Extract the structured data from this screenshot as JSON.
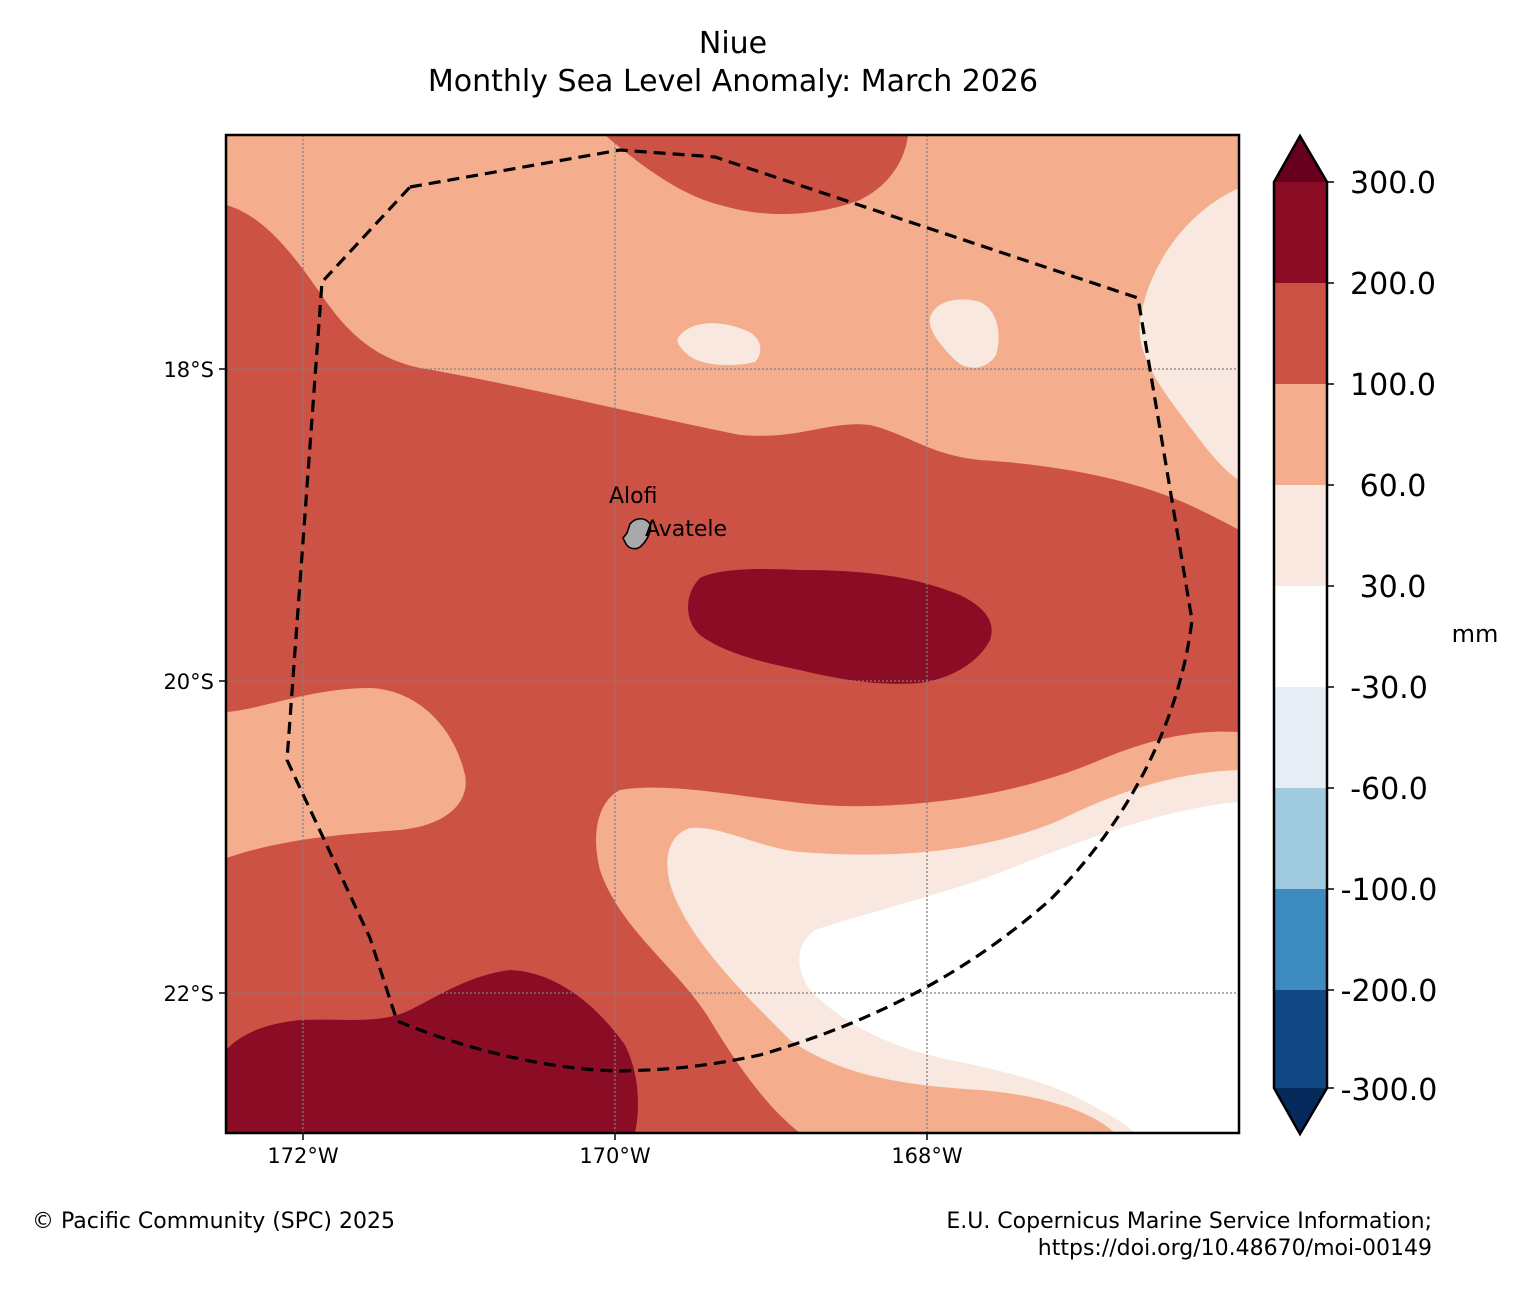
{
  "title": {
    "line1": "Niue",
    "line2": "Monthly Sea Level Anomaly: March 2026"
  },
  "map": {
    "lat_labels": [
      "18°S",
      "20°S",
      "22°S"
    ],
    "lon_labels": [
      "172°W",
      "170°W",
      "168°W"
    ],
    "place_labels": {
      "alofi": "Alofi",
      "avatele": "Avatele"
    },
    "eez_boundary_style": "dashed"
  },
  "colorbar": {
    "unit": "mm",
    "tick_labels": [
      "300.0",
      "200.0",
      "100.0",
      "60.0",
      "30.0",
      "-30.0",
      "-60.0",
      "-100.0",
      "-200.0",
      "-300.0"
    ],
    "colors": {
      "extend_max": "#67001f",
      "b200_300": "#8b0c25",
      "b100_200": "#cc5246",
      "b60_100": "#f4ae8d",
      "b30_60": "#f9e8df",
      "bm30_30": "#ffffff",
      "bm60_m30": "#e6edf5",
      "bm100_m60": "#a0cae0",
      "bm200_m100": "#3e8bc0",
      "bm300_m200": "#124784",
      "extend_min": "#072a5c"
    }
  },
  "footer": {
    "left": "© Pacific Community (SPC) 2025",
    "right_line1": "E.U. Copernicus Marine Service Information;",
    "right_line2": "https://doi.org/10.48670/moi-00149"
  }
}
